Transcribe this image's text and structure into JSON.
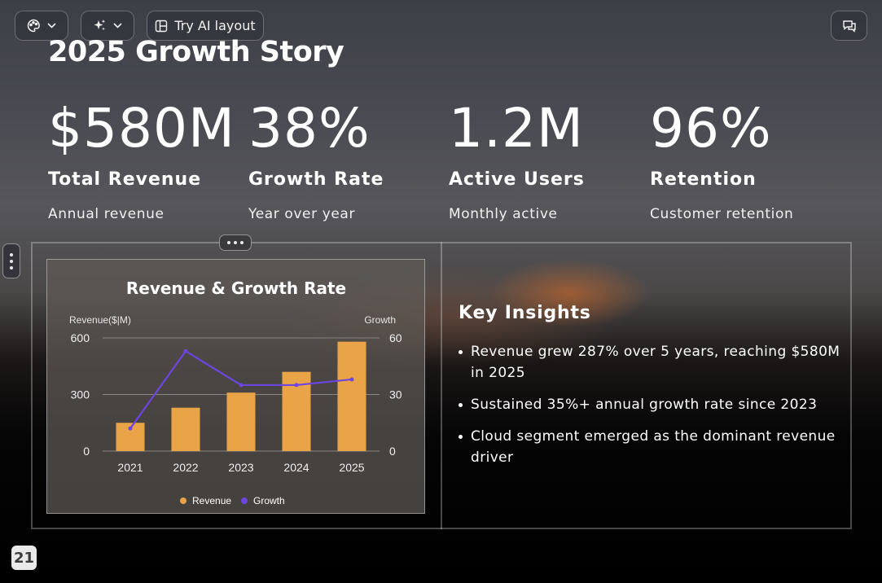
{
  "toolbar": {
    "theme_icon": "palette-icon",
    "ai_icon": "sparkles-icon",
    "ai_layout_icon": "layout-icon",
    "ai_layout_label": "Try AI layout",
    "comments_icon": "comments-icon"
  },
  "slide": {
    "title": "2025 Growth Story",
    "stats": [
      {
        "value": "$580M",
        "label": "Total Revenue",
        "desc": "Annual revenue"
      },
      {
        "value": "38%",
        "label": "Growth Rate",
        "desc": "Year over year"
      },
      {
        "value": "1.2M",
        "label": "Active Users",
        "desc": "Monthly active"
      },
      {
        "value": "96%",
        "label": "Retention",
        "desc": "Customer retention"
      }
    ],
    "insights": {
      "title": "Key Insights",
      "items": [
        "Revenue grew 287% over 5 years, reaching $580M in 2025",
        "Sustained 35%+ annual growth rate since 2023",
        "Cloud segment emerged as the dominant revenue driver"
      ]
    },
    "page_number": "21"
  },
  "colors": {
    "revenue_bar": "#e9a447",
    "growth_line": "#6d45e0",
    "grid": "#8a8480"
  },
  "chart_data": {
    "type": "bar",
    "title": "Revenue & Growth Rate",
    "categories": [
      "2021",
      "2022",
      "2023",
      "2024",
      "2025"
    ],
    "series": [
      {
        "name": "Revenue",
        "type": "bar",
        "axis": "left",
        "values": [
          150,
          230,
          310,
          420,
          580
        ]
      },
      {
        "name": "Growth",
        "type": "line",
        "axis": "right",
        "values": [
          12,
          53,
          35,
          35,
          38
        ]
      }
    ],
    "ylabel": "Revenue($|M)",
    "y2label": "Growth",
    "ylim": [
      0,
      600
    ],
    "y2lim": [
      0,
      60
    ],
    "yticks": [
      "0",
      "300",
      "600"
    ],
    "y2ticks": [
      "0",
      "30",
      "60"
    ],
    "grid": true,
    "legend": "bottom"
  }
}
